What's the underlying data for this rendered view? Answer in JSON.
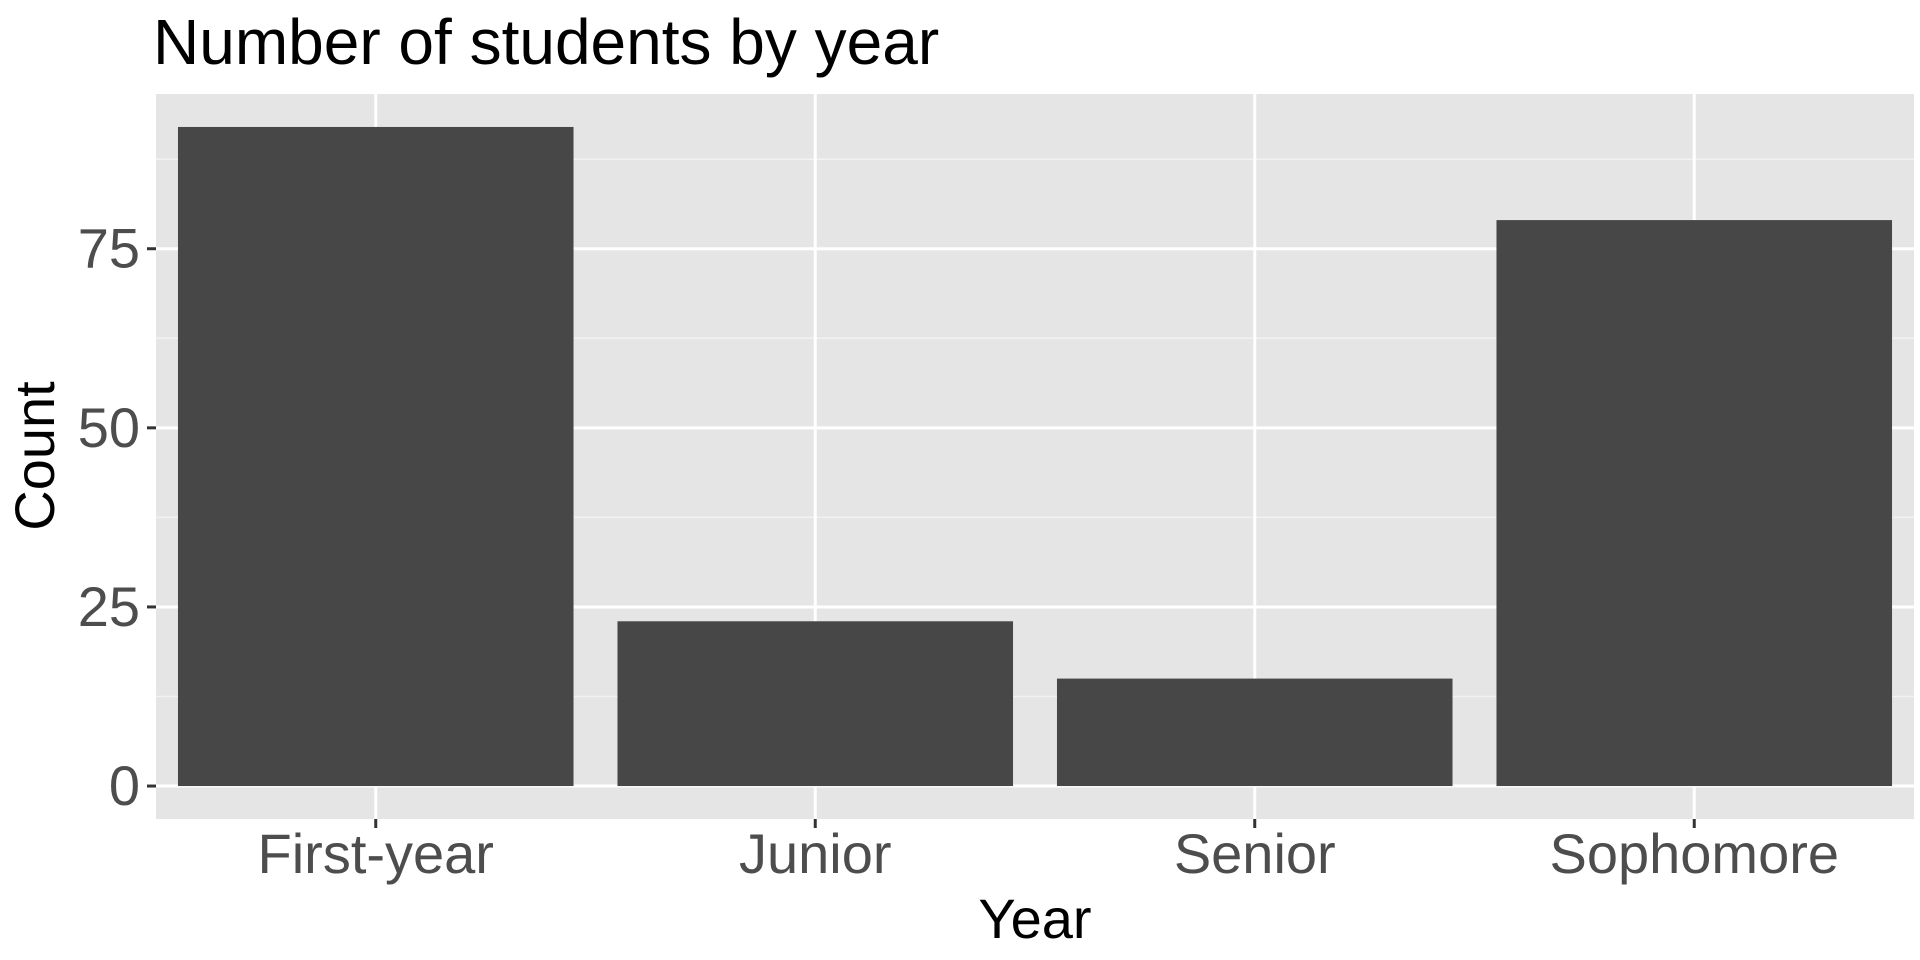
{
  "chart_data": {
    "type": "bar",
    "title": "Number of students by year",
    "xlabel": "Year",
    "ylabel": "Count",
    "categories": [
      "First-year",
      "Junior",
      "Senior",
      "Sophomore"
    ],
    "values": [
      92,
      23,
      15,
      79
    ],
    "ylim": [
      -4.6,
      96.6
    ],
    "yticks": [
      0,
      25,
      50,
      75
    ],
    "ytick_labels": [
      "0",
      "25",
      "50",
      "75"
    ],
    "grid": true,
    "legend": "none",
    "colors": {
      "bar": "#474747",
      "panel_background": "#e5e5e5",
      "grid_major": "#ffffff",
      "grid_minor": "#f2f2f2",
      "tick_label": "#4d4d4d",
      "text": "#000000"
    }
  }
}
